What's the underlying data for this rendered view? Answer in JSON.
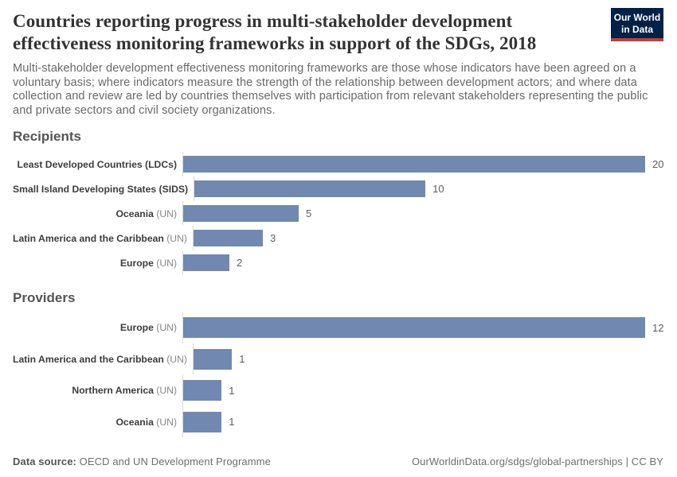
{
  "header": {
    "title": "Countries reporting progress in multi-stakeholder development effectiveness monitoring frameworks in support of the SDGs, 2018",
    "subtitle": "Multi-stakeholder development effectiveness monitoring frameworks are those whose indicators have been agreed on a voluntary basis; where indicators measure the strength of the relationship between development actors; and where data collection and review are led by countries themselves with participation from relevant stakeholders representing the public and private sectors and civil society organizations.",
    "logo": {
      "line1": "Our World",
      "line2": "in Data",
      "bg_color": "#002147",
      "accent_color": "#c53d33"
    }
  },
  "chart_data": [
    {
      "type": "bar",
      "orientation": "horizontal",
      "title": "Recipients",
      "categories": [
        "Least Developed Countries (LDCs)",
        "Small Island Developing States (SIDS)",
        "Oceania (UN)",
        "Latin America and the Caribbean (UN)",
        "Europe (UN)"
      ],
      "bold_parts": [
        "Least Developed Countries (LDCs)",
        "Small Island Developing States (SIDS)",
        "Oceania",
        "Latin America and the Caribbean",
        "Europe"
      ],
      "light_parts": [
        "",
        "",
        " (UN)",
        " (UN)",
        " (UN)"
      ],
      "values": [
        20,
        10,
        5,
        3,
        2
      ],
      "xlim": [
        0,
        20
      ],
      "bar_color": "#7189b0",
      "grid": false,
      "value_labels": true
    },
    {
      "type": "bar",
      "orientation": "horizontal",
      "title": "Providers",
      "categories": [
        "Europe (UN)",
        "Latin America and the Caribbean (UN)",
        "Northern America (UN)",
        "Oceania (UN)"
      ],
      "bold_parts": [
        "Europe",
        "Latin America and the Caribbean",
        "Northern America",
        "Oceania"
      ],
      "light_parts": [
        " (UN)",
        " (UN)",
        " (UN)",
        " (UN)"
      ],
      "values": [
        12,
        1,
        1,
        1
      ],
      "xlim": [
        0,
        12
      ],
      "bar_color": "#7189b0",
      "grid": false,
      "value_labels": true
    }
  ],
  "footer": {
    "data_source_label": "Data source:",
    "data_source_value": " OECD and UN Development Programme",
    "url": "OurWorldinData.org/sdgs/global-partnerships",
    "separator": " | ",
    "license": "CC BY"
  },
  "colors": {
    "bar": "#7189b0",
    "title_text": "#333333",
    "subtitle_text": "#696969",
    "section_heading": "#555555",
    "axis_line": "#d9d9d9",
    "logo_bg": "#002147",
    "logo_accent": "#c53d33"
  }
}
